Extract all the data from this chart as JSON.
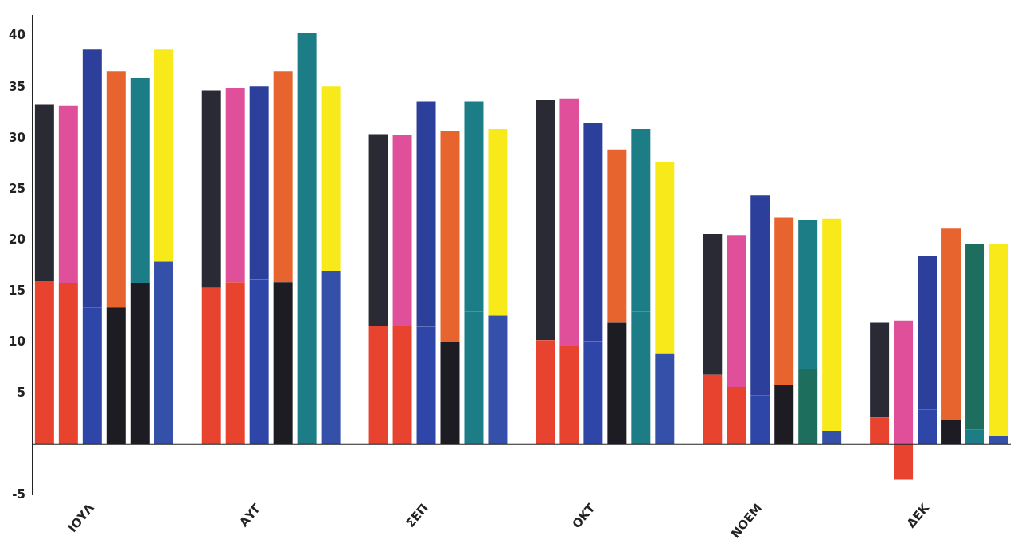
{
  "chart_data": {
    "type": "bar",
    "stacked": true,
    "categories": [
      null,
      null,
      "ΙΟΥΛ",
      null,
      null,
      null,
      null,
      null,
      null,
      "ΑΥΓ",
      null,
      null,
      null,
      null,
      null,
      null,
      "ΣΕΠ",
      null,
      null,
      null,
      null,
      null,
      null,
      "ΟΚΤ",
      null,
      null,
      null,
      null,
      null,
      null,
      "ΝΟΕΜ",
      null,
      null,
      null,
      null,
      null,
      null,
      "ΔΕΚ",
      null,
      null,
      null
    ],
    "ylim": [
      -5,
      42
    ],
    "yticks": [
      -5,
      5,
      10,
      15,
      20,
      25,
      30,
      35,
      40
    ],
    "grid": false,
    "legend": false,
    "ref_lines": [
      {
        "axis": "y",
        "value": 0,
        "color": "#222222"
      }
    ],
    "series": [
      {
        "values": [
          16,
          15.8,
          13.4,
          13.4,
          15.8,
          17.9,
          null,
          15.3,
          15.9,
          16.1,
          15.9,
          18.1,
          17,
          null,
          11.6,
          11.6,
          11.5,
          10,
          13,
          12.6,
          null,
          10.2,
          9.6,
          10.1,
          11.9,
          13,
          8.9,
          null,
          6.8,
          5.6,
          4.8,
          5.8,
          7.4,
          1.3,
          null,
          2.6,
          -3.5,
          3.4,
          2.4,
          1.4,
          0.8
        ],
        "colors": [
          "#e8432e",
          "#e8432e",
          "#2e46a8",
          "#1c1c22",
          "#1c1c22",
          "#3550a8",
          null,
          "#e8432e",
          "#e8432e",
          "#2e46a8",
          "#1c1c22",
          "#1d7d86",
          "#3550a8",
          null,
          "#e8432e",
          "#e8432e",
          "#2e46a8",
          "#1c1c22",
          "#1d7d86",
          "#3550a8",
          null,
          "#e8432e",
          "#e8432e",
          "#2e46a8",
          "#1c1c22",
          "#1d7d86",
          "#3550a8",
          null,
          "#e8432e",
          "#e8432e",
          "#2e46a8",
          "#1c1c22",
          "#1d6e5c",
          "#3550a8",
          null,
          "#e8432e",
          "#e8432e",
          "#2e46a8",
          "#1c1c22",
          "#1d7d86",
          "#3550a8"
        ]
      },
      {
        "values": [
          17.3,
          17.4,
          25.3,
          23.2,
          20.1,
          20.8,
          null,
          19.4,
          19,
          19,
          20.7,
          22.2,
          18.1,
          null,
          18.8,
          18.7,
          22.1,
          20.7,
          20.6,
          18.3,
          null,
          23.6,
          24.3,
          21.4,
          17,
          17.9,
          18.8,
          null,
          13.8,
          14.9,
          19.6,
          16.4,
          14.6,
          20.8,
          null,
          9.3,
          12.1,
          15.1,
          18.8,
          18.2,
          18.8
        ],
        "colors": [
          "#2a2a35",
          "#e0509a",
          "#2c3f9a",
          "#e8642e",
          "#1d7d86",
          "#f8ea1a",
          null,
          "#2a2a35",
          "#e0509a",
          "#2c3f9a",
          "#e8642e",
          "#1d7d86",
          "#f8ea1a",
          null,
          "#2a2a35",
          "#e0509a",
          "#2c3f9a",
          "#e8642e",
          "#1d7d86",
          "#f8ea1a",
          null,
          "#2a2a35",
          "#e0509a",
          "#2c3f9a",
          "#e8642e",
          "#1d7d86",
          "#f8ea1a",
          null,
          "#2a2a35",
          "#e0509a",
          "#2c3f9a",
          "#e8642e",
          "#1d7d86",
          "#f8ea1a",
          null,
          "#2a2a35",
          "#e0509a",
          "#2c3f9a",
          "#e8642e",
          "#1d6e5c",
          "#f8ea1a"
        ]
      }
    ]
  }
}
